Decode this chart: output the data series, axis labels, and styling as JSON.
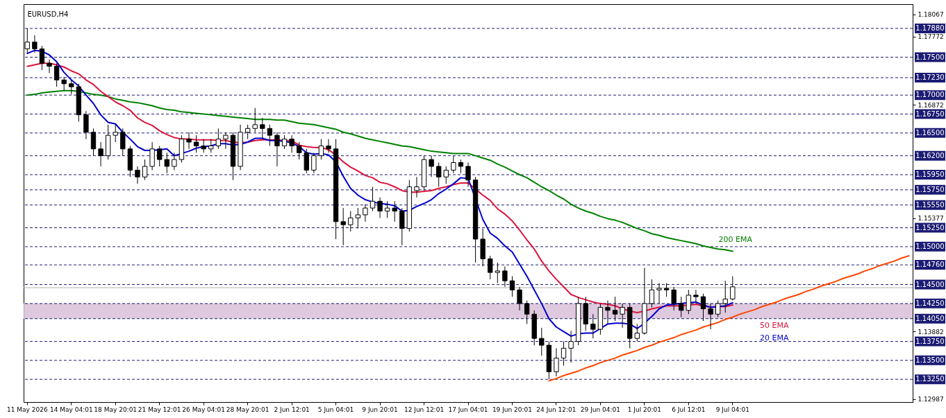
{
  "chart_data": {
    "type": "candlestick",
    "title": "EURUSD,H4",
    "categories": [
      "11 May 2026",
      null,
      null,
      null,
      null,
      null,
      "14 May 04:01",
      null,
      null,
      null,
      null,
      null,
      "18 May 20:01",
      null,
      null,
      null,
      null,
      null,
      "21 May 12:01",
      null,
      null,
      null,
      null,
      null,
      "26 May 04:01",
      null,
      null,
      null,
      null,
      null,
      "28 May 20:01",
      null,
      null,
      null,
      null,
      null,
      "2 Jun 12:01",
      null,
      null,
      null,
      null,
      null,
      "5 Jun 04:01",
      null,
      null,
      null,
      null,
      null,
      "9 Jun 20:01",
      null,
      null,
      null,
      null,
      null,
      "12 Jun 12:01",
      null,
      null,
      null,
      null,
      null,
      "17 Jun 04:01",
      null,
      null,
      null,
      null,
      null,
      "19 Jun 20:01",
      null,
      null,
      null,
      null,
      null,
      "24 Jun 12:01",
      null,
      null,
      null,
      null,
      null,
      "29 Jun 04:01",
      null,
      null,
      null,
      null,
      null,
      "1 Jul 20:01",
      null,
      null,
      null,
      null,
      null,
      "6 Jul 12:01",
      null,
      null,
      null,
      null,
      null,
      "9 Jul 04:01",
      null,
      null,
      null,
      null,
      null,
      null,
      null,
      null,
      null,
      null,
      null,
      null,
      null,
      null,
      null,
      null,
      null,
      null,
      null,
      null,
      null,
      null,
      null,
      null
    ],
    "ohlc": [
      [
        1.1761,
        1.1788,
        1.1756,
        1.177
      ],
      [
        1.177,
        1.1779,
        1.1756,
        1.1761
      ],
      [
        1.1761,
        1.1765,
        1.1733,
        1.1742
      ],
      [
        1.1742,
        1.1747,
        1.1729,
        1.1738
      ],
      [
        1.1738,
        1.1742,
        1.1711,
        1.172
      ],
      [
        1.172,
        1.1724,
        1.1706,
        1.1715
      ],
      [
        1.1715,
        1.172,
        1.1701,
        1.1711
      ],
      [
        1.1711,
        1.1715,
        1.1665,
        1.1674
      ],
      [
        1.1674,
        1.1679,
        1.1642,
        1.1651
      ],
      [
        1.1651,
        1.1656,
        1.162,
        1.1629
      ],
      [
        1.1629,
        1.1638,
        1.1606,
        1.162
      ],
      [
        1.162,
        1.1661,
        1.1615,
        1.1647
      ],
      [
        1.1647,
        1.1661,
        1.1638,
        1.1651
      ],
      [
        1.1651,
        1.1656,
        1.162,
        1.1629
      ],
      [
        1.1629,
        1.1633,
        1.1592,
        1.1601
      ],
      [
        1.1601,
        1.1606,
        1.1583,
        1.1592
      ],
      [
        1.1592,
        1.1615,
        1.1588,
        1.1606
      ],
      [
        1.1606,
        1.1638,
        1.1601,
        1.1629
      ],
      [
        1.1629,
        1.1633,
        1.1606,
        1.1615
      ],
      [
        1.1615,
        1.1624,
        1.1597,
        1.1606
      ],
      [
        1.1606,
        1.1624,
        1.1601,
        1.1615
      ],
      [
        1.1615,
        1.1647,
        1.1611,
        1.1642
      ],
      [
        1.1642,
        1.1651,
        1.1629,
        1.1638
      ],
      [
        1.1638,
        1.1647,
        1.1624,
        1.1633
      ],
      [
        1.1633,
        1.1642,
        1.1624,
        1.1629
      ],
      [
        1.1629,
        1.1642,
        1.1624,
        1.1633
      ],
      [
        1.1633,
        1.1656,
        1.1629,
        1.1642
      ],
      [
        1.1642,
        1.1651,
        1.1629,
        1.1647
      ],
      [
        1.1647,
        1.1651,
        1.1588,
        1.1606
      ],
      [
        1.1606,
        1.1661,
        1.1601,
        1.1651
      ],
      [
        1.1651,
        1.1661,
        1.1642,
        1.1656
      ],
      [
        1.1656,
        1.1683,
        1.1651,
        1.1661
      ],
      [
        1.1661,
        1.167,
        1.1642,
        1.1656
      ],
      [
        1.1656,
        1.1661,
        1.1633,
        1.1647
      ],
      [
        1.1647,
        1.1651,
        1.1606,
        1.1633
      ],
      [
        1.1633,
        1.1647,
        1.1629,
        1.1642
      ],
      [
        1.1642,
        1.1647,
        1.1624,
        1.1633
      ],
      [
        1.1633,
        1.1638,
        1.1615,
        1.1624
      ],
      [
        1.1624,
        1.1629,
        1.1597,
        1.1601
      ],
      [
        1.1601,
        1.1624,
        1.1597,
        1.162
      ],
      [
        1.162,
        1.1642,
        1.1615,
        1.1633
      ],
      [
        1.1633,
        1.1642,
        1.1624,
        1.1629
      ],
      [
        1.1629,
        1.1642,
        1.151,
        1.1533
      ],
      [
        1.1533,
        1.1551,
        1.1502,
        1.1529
      ],
      [
        1.1529,
        1.1547,
        1.152,
        1.1538
      ],
      [
        1.1538,
        1.1551,
        1.1524,
        1.1542
      ],
      [
        1.1542,
        1.1556,
        1.1533,
        1.1551
      ],
      [
        1.1551,
        1.1579,
        1.1547,
        1.156
      ],
      [
        1.156,
        1.1565,
        1.1538,
        1.1547
      ],
      [
        1.1547,
        1.156,
        1.1538,
        1.1551
      ],
      [
        1.1551,
        1.156,
        1.1533,
        1.1547
      ],
      [
        1.1547,
        1.1551,
        1.1502,
        1.1524
      ],
      [
        1.1524,
        1.1588,
        1.152,
        1.1579
      ],
      [
        1.1574,
        1.1592,
        1.1565,
        1.1579
      ],
      [
        1.1579,
        1.162,
        1.1574,
        1.1615
      ],
      [
        1.1615,
        1.162,
        1.1592,
        1.1606
      ],
      [
        1.1606,
        1.1611,
        1.1579,
        1.1592
      ],
      [
        1.1592,
        1.1606,
        1.1583,
        1.1601
      ],
      [
        1.1601,
        1.162,
        1.1597,
        1.1611
      ],
      [
        1.1611,
        1.1615,
        1.1597,
        1.1606
      ],
      [
        1.1606,
        1.1611,
        1.1579,
        1.1588
      ],
      [
        1.1588,
        1.1592,
        1.1479,
        1.151
      ],
      [
        1.151,
        1.1524,
        1.1474,
        1.1484
      ],
      [
        1.1484,
        1.1488,
        1.1457,
        1.1466
      ],
      [
        1.1466,
        1.1479,
        1.1452,
        1.1468
      ],
      [
        1.1468,
        1.1474,
        1.1447,
        1.1455
      ],
      [
        1.1455,
        1.1461,
        1.1434,
        1.1443
      ],
      [
        1.1443,
        1.1447,
        1.1416,
        1.1425
      ],
      [
        1.1425,
        1.1429,
        1.1398,
        1.1411
      ],
      [
        1.1411,
        1.1416,
        1.137,
        1.1379
      ],
      [
        1.1379,
        1.1393,
        1.1356,
        1.137
      ],
      [
        1.137,
        1.1375,
        1.1325,
        1.1335
      ],
      [
        1.1335,
        1.1366,
        1.1329,
        1.1353
      ],
      [
        1.1353,
        1.1375,
        1.1343,
        1.1366
      ],
      [
        1.1366,
        1.1389,
        1.1347,
        1.1375
      ],
      [
        1.1375,
        1.1434,
        1.137,
        1.1425
      ],
      [
        1.1425,
        1.1434,
        1.1389,
        1.1398
      ],
      [
        1.1398,
        1.1411,
        1.1379,
        1.1391
      ],
      [
        1.1391,
        1.1425,
        1.1384,
        1.142
      ],
      [
        1.142,
        1.1429,
        1.1398,
        1.1416
      ],
      [
        1.1416,
        1.1434,
        1.1402,
        1.1411
      ],
      [
        1.1411,
        1.1425,
        1.1393,
        1.142
      ],
      [
        1.142,
        1.1425,
        1.1366,
        1.1379
      ],
      [
        1.1379,
        1.1398,
        1.1375,
        1.1386
      ],
      [
        1.1386,
        1.1472,
        1.1384,
        1.1425
      ],
      [
        1.1425,
        1.1457,
        1.142,
        1.1443
      ],
      [
        1.1443,
        1.1452,
        1.1425,
        1.1445
      ],
      [
        1.1445,
        1.1452,
        1.1434,
        1.1443
      ],
      [
        1.1443,
        1.1447,
        1.1416,
        1.1425
      ],
      [
        1.1425,
        1.1434,
        1.1407,
        1.1416
      ],
      [
        1.1416,
        1.1443,
        1.1411,
        1.1436
      ],
      [
        1.1436,
        1.1443,
        1.1425,
        1.1434
      ],
      [
        1.1434,
        1.1438,
        1.1402,
        1.1418
      ],
      [
        1.1418,
        1.1425,
        1.1391,
        1.1411
      ],
      [
        1.1411,
        1.1429,
        1.1407,
        1.1425
      ],
      [
        1.1425,
        1.1455,
        1.1413,
        1.1431
      ],
      [
        1.1431,
        1.1461,
        1.1429,
        1.1447
      ],
      null,
      null,
      null,
      null,
      null,
      null,
      null,
      null,
      null,
      null,
      null,
      null,
      null,
      null,
      null,
      null,
      null,
      null,
      null,
      null,
      null,
      null,
      null,
      null
    ],
    "series": [
      {
        "type": "line",
        "color": "#ff4500",
        "values": [
          null,
          null,
          null,
          null,
          null,
          null,
          null,
          null,
          null,
          null,
          null,
          null,
          null,
          null,
          null,
          null,
          null,
          null,
          null,
          null,
          null,
          null,
          null,
          null,
          null,
          null,
          null,
          null,
          null,
          null,
          null,
          null,
          null,
          null,
          null,
          null,
          null,
          null,
          null,
          null,
          null,
          null,
          null,
          null,
          null,
          null,
          null,
          null,
          null,
          null,
          null,
          null,
          null,
          null,
          null,
          null,
          null,
          null,
          null,
          null,
          null,
          null,
          null,
          null,
          null,
          null,
          null,
          null,
          null,
          null,
          null,
          1.1323,
          1.1326,
          1.133,
          1.1333,
          1.1336,
          1.134,
          1.1343,
          1.1347,
          1.135,
          1.1353,
          1.1357,
          1.136,
          1.1363,
          1.1367,
          1.137,
          1.1374,
          1.1377,
          1.138,
          1.1384,
          1.1387,
          1.139,
          1.1394,
          1.1397,
          1.14,
          1.1404,
          1.1407,
          1.1411,
          1.1414,
          1.1417,
          1.1421,
          1.1424,
          1.1427,
          1.1431,
          1.1434,
          1.1437,
          1.1441,
          1.1444,
          1.1448,
          1.1451,
          1.1454,
          1.1458,
          1.1461,
          1.1464,
          1.1468,
          1.1471,
          1.1475,
          1.1478,
          1.1481,
          1.1485,
          1.1488
        ]
      },
      {
        "type": "line",
        "name": "200 EMA",
        "color": "#008000",
        "values": [
          1.17,
          1.1701,
          1.1703,
          1.1704,
          1.1705,
          1.1706,
          1.1706,
          1.1705,
          1.1703,
          1.1701,
          1.17,
          1.1698,
          1.1695,
          1.1693,
          1.1691,
          1.169,
          1.1688,
          1.1686,
          1.1683,
          1.1681,
          1.168,
          1.1678,
          1.1677,
          1.1676,
          1.1675,
          1.1674,
          1.1673,
          1.1672,
          1.1671,
          1.167,
          1.1669,
          1.1668,
          1.1668,
          1.1668,
          1.1667,
          1.1667,
          1.1665,
          1.1663,
          1.1662,
          1.1661,
          1.1659,
          1.1657,
          1.1655,
          1.1651,
          1.1649,
          1.1646,
          1.1643,
          1.1641,
          1.1639,
          1.1637,
          1.1635,
          1.1633,
          1.1632,
          1.163,
          1.1628,
          1.1626,
          1.1625,
          1.1624,
          1.1623,
          1.1623,
          1.1623,
          1.162,
          1.1617,
          1.1614,
          1.1609,
          1.1605,
          1.16,
          1.1595,
          1.1591,
          1.1585,
          1.1579,
          1.1574,
          1.1568,
          1.1563,
          1.1556,
          1.1551,
          1.1547,
          1.1544,
          1.154,
          1.1537,
          1.1535,
          1.1532,
          1.1528,
          1.1524,
          1.1521,
          1.1517,
          1.1515,
          1.1512,
          1.151,
          1.1508,
          1.1506,
          1.1504,
          1.1501,
          1.1499,
          1.1497,
          1.1496,
          1.1494,
          null,
          null,
          null,
          null,
          null,
          null,
          null,
          null,
          null,
          null,
          null,
          null,
          null,
          null,
          null,
          null,
          null,
          null,
          null,
          null,
          null,
          null,
          null,
          null
        ]
      },
      {
        "type": "line",
        "name": "50 EMA",
        "color": "#dc143c",
        "values": [
          1.1738,
          1.174,
          1.1742,
          1.1742,
          1.174,
          1.1737,
          1.1732,
          1.1728,
          1.172,
          1.1714,
          1.1705,
          1.1698,
          1.1691,
          1.1686,
          1.168,
          1.167,
          1.1664,
          1.166,
          1.1653,
          1.1648,
          1.1644,
          1.1642,
          1.1642,
          1.1641,
          1.1641,
          1.1641,
          1.164,
          1.164,
          1.1638,
          1.1637,
          1.1638,
          1.164,
          1.1641,
          1.1641,
          1.1641,
          1.164,
          1.164,
          1.1634,
          1.1632,
          1.1631,
          1.1631,
          1.1628,
          1.1621,
          1.1612,
          1.1605,
          1.16,
          1.1594,
          1.1591,
          1.1585,
          1.1583,
          1.1579,
          1.1574,
          1.1572,
          1.1572,
          1.1573,
          1.1574,
          1.1577,
          1.1579,
          1.1582,
          1.1584,
          1.1584,
          null,
          1.1568,
          1.1561,
          1.155,
          1.1543,
          1.1534,
          1.1522,
          1.1509,
          1.1497,
          1.1481,
          1.1468,
          1.1457,
          1.1447,
          1.1437,
          1.1433,
          1.143,
          1.1427,
          1.1425,
          1.1424,
          1.1422,
          1.1418,
          1.1415,
          1.1413,
          1.1415,
          1.1418,
          1.142,
          1.1422,
          1.1422,
          1.1422,
          1.1423,
          1.1424,
          1.1422,
          1.142,
          1.1421,
          1.1421,
          1.1423,
          null,
          null,
          null,
          null,
          null,
          null,
          null,
          null,
          null,
          null,
          null,
          null,
          null,
          null,
          null,
          null,
          null,
          null,
          null,
          null,
          null,
          null,
          null,
          null
        ]
      },
      {
        "type": "line",
        "name": "20 EMA",
        "color": "#0000cd",
        "values": [
          1.1755,
          1.1759,
          1.1758,
          1.1753,
          1.1744,
          1.173,
          1.172,
          1.1712,
          1.17,
          1.1689,
          1.1674,
          1.1664,
          1.1662,
          1.1651,
          1.1642,
          1.1632,
          1.1627,
          1.1627,
          1.1628,
          1.1629,
          1.162,
          1.1623,
          1.1626,
          1.163,
          1.1632,
          1.1633,
          1.1636,
          1.1636,
          1.1634,
          1.1635,
          1.1638,
          1.1643,
          1.1643,
          1.164,
          1.164,
          1.1639,
          1.1637,
          1.1632,
          1.1624,
          1.1622,
          1.1623,
          1.1621,
          1.1612,
          1.1593,
          1.1577,
          1.1568,
          1.1562,
          1.1559,
          1.1557,
          1.1556,
          1.1554,
          1.1547,
          1.1548,
          1.1553,
          1.1557,
          1.1562,
          1.157,
          1.1576,
          1.1583,
          1.1591,
          1.159,
          null,
          1.1536,
          1.1518,
          1.1511,
          1.1501,
          1.1493,
          1.1477,
          1.1461,
          1.1443,
          1.1425,
          1.1405,
          1.1394,
          1.1388,
          1.1382,
          1.1385,
          1.1386,
          1.1386,
          1.1392,
          1.1398,
          1.1399,
          1.1399,
          1.1398,
          1.1392,
          1.1399,
          1.1408,
          1.1418,
          1.1423,
          1.1424,
          1.1425,
          1.1426,
          1.1427,
          1.1423,
          1.142,
          1.1421,
          1.1422,
          1.1426,
          null,
          null,
          null,
          null,
          null,
          null,
          null,
          null,
          null,
          null,
          null,
          null,
          null,
          null,
          null,
          null,
          null,
          null,
          null,
          null,
          null,
          null,
          null,
          null
        ]
      }
    ],
    "bands": [
      {
        "axis": "y",
        "from": 1.1405,
        "to": 1.1425,
        "color": "#d8bfd8"
      }
    ],
    "ylim": [
      1.1295,
      1.182
    ],
    "yticks": [
      1.18067,
      1.17772,
      1.16872,
      1.15377,
      1.13882,
      1.12987
    ],
    "ref_lines": [
      {
        "axis": "y",
        "value": 1.1788,
        "label": "1.17880",
        "color": "#1b1b73",
        "line_style": "dashed"
      },
      {
        "axis": "y",
        "value": 1.175,
        "label": "1.17500",
        "color": "#1b1b73",
        "line_style": "dashed"
      },
      {
        "axis": "y",
        "value": 1.1723,
        "label": "1.17230",
        "color": "#1b1b73",
        "line_style": "dashed"
      },
      {
        "axis": "y",
        "value": 1.17,
        "label": "1.17000",
        "color": "#1b1b73",
        "line_style": "dashed"
      },
      {
        "axis": "y",
        "value": 1.1675,
        "label": "1.16750",
        "color": "#1b1b73",
        "line_style": "dashed"
      },
      {
        "axis": "y",
        "value": 1.165,
        "label": "1.16500",
        "color": "#1b1b73",
        "line_style": "dashed"
      },
      {
        "axis": "y",
        "value": 1.162,
        "label": "1.16200",
        "color": "#1b1b73",
        "line_style": "dashed"
      },
      {
        "axis": "y",
        "value": 1.1595,
        "label": "1.15950",
        "color": "#1b1b73",
        "line_style": "dashed"
      },
      {
        "axis": "y",
        "value": 1.1575,
        "label": "1.15750",
        "color": "#1b1b73",
        "line_style": "dashed"
      },
      {
        "axis": "y",
        "value": 1.1555,
        "label": "1.15550",
        "color": "#1b1b73",
        "line_style": "dashed"
      },
      {
        "axis": "y",
        "value": 1.1525,
        "label": "1.15250",
        "color": "#1b1b73",
        "line_style": "dashed"
      },
      {
        "axis": "y",
        "value": 1.15,
        "label": "1.15000",
        "color": "#1b1b73",
        "line_style": "dashed"
      },
      {
        "axis": "y",
        "value": 1.1476,
        "label": "1.14760",
        "color": "#1b1b73",
        "line_style": "dashed"
      },
      {
        "axis": "y",
        "value": 1.145,
        "label": "1.14500",
        "color": "#1b1b73",
        "line_style": "dashed"
      },
      {
        "axis": "y",
        "value": 1.1425,
        "label": "1.14250",
        "color": "#1b1b73",
        "line_style": "dashed"
      },
      {
        "axis": "y",
        "value": 1.1405,
        "label": "1.14050",
        "color": "#1b1b73",
        "line_style": "dashed"
      },
      {
        "axis": "y",
        "value": 1.1375,
        "label": "1.13750",
        "color": "#1b1b73",
        "line_style": "dashed"
      },
      {
        "axis": "y",
        "value": 1.135,
        "label": "1.13500",
        "color": "#1b1b73",
        "line_style": "dashed"
      },
      {
        "axis": "y",
        "value": 1.1325,
        "label": "1.13250",
        "color": "#1b1b73",
        "line_style": "dashed"
      },
      {
        "axis": "y",
        "value": 1.14459,
        "color": "#b0b0b0",
        "line_style": "solid"
      }
    ]
  }
}
